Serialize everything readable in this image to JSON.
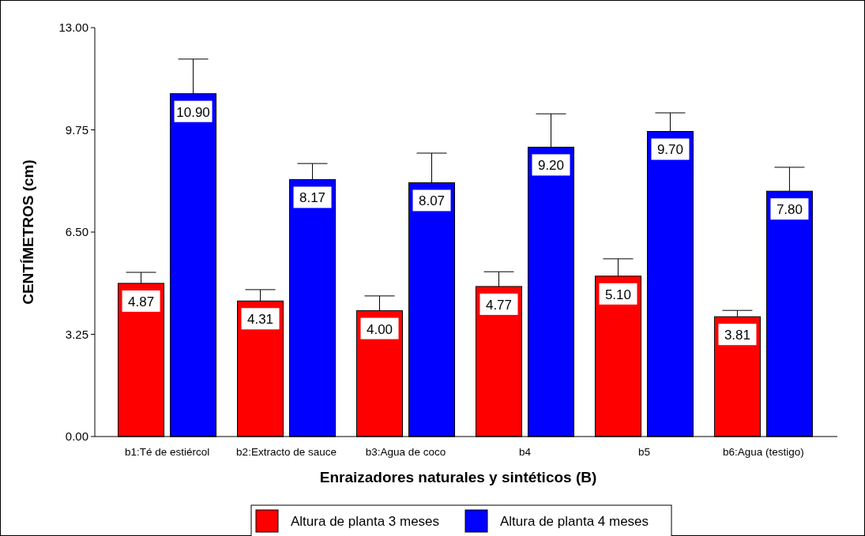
{
  "chart_data": {
    "type": "bar",
    "xlabel": "Enraizadores naturales y sintéticos (B)",
    "ylabel": "CENTÍMETROS (cm)",
    "categories": [
      "b1:Té de estiércol",
      "b2:Extracto de sauce",
      "b3:Agua de coco",
      "b4",
      "b5",
      "b6:Agua (testigo)"
    ],
    "series": [
      {
        "name": "Altura de planta 3 meses",
        "color": "#ff0000",
        "values": [
          4.87,
          4.31,
          4.0,
          4.77,
          5.1,
          3.81
        ],
        "value_labels": [
          "4.87",
          "4.31",
          "4.00",
          "4.77",
          "5.10",
          "3.81"
        ],
        "errors": [
          [
            4.87,
            5.22
          ],
          [
            4.31,
            4.67
          ],
          [
            4.0,
            4.47
          ],
          [
            4.77,
            5.24
          ],
          [
            5.1,
            5.65
          ],
          [
            3.81,
            4.01
          ]
        ]
      },
      {
        "name": "Altura de planta 4 meses",
        "color": "#0000ff",
        "values": [
          10.9,
          8.17,
          8.07,
          9.2,
          9.7,
          7.8
        ],
        "value_labels": [
          "10.90",
          "8.17",
          "8.07",
          "9.20",
          "9.70",
          "7.80"
        ],
        "errors": [
          [
            10.9,
            12.0
          ],
          [
            8.17,
            8.68
          ],
          [
            8.07,
            9.01
          ],
          [
            9.2,
            10.26
          ],
          [
            9.7,
            10.29
          ],
          [
            7.8,
            8.56
          ]
        ]
      }
    ],
    "ylim": [
      0,
      13
    ],
    "yticks": [
      {
        "value": 0,
        "label": "0.00"
      },
      3.25,
      {
        "value": 6.5,
        "label": "6.50"
      },
      9.75,
      {
        "value": 13,
        "label": "13.00"
      }
    ],
    "grid": false,
    "legend": "bottom"
  }
}
